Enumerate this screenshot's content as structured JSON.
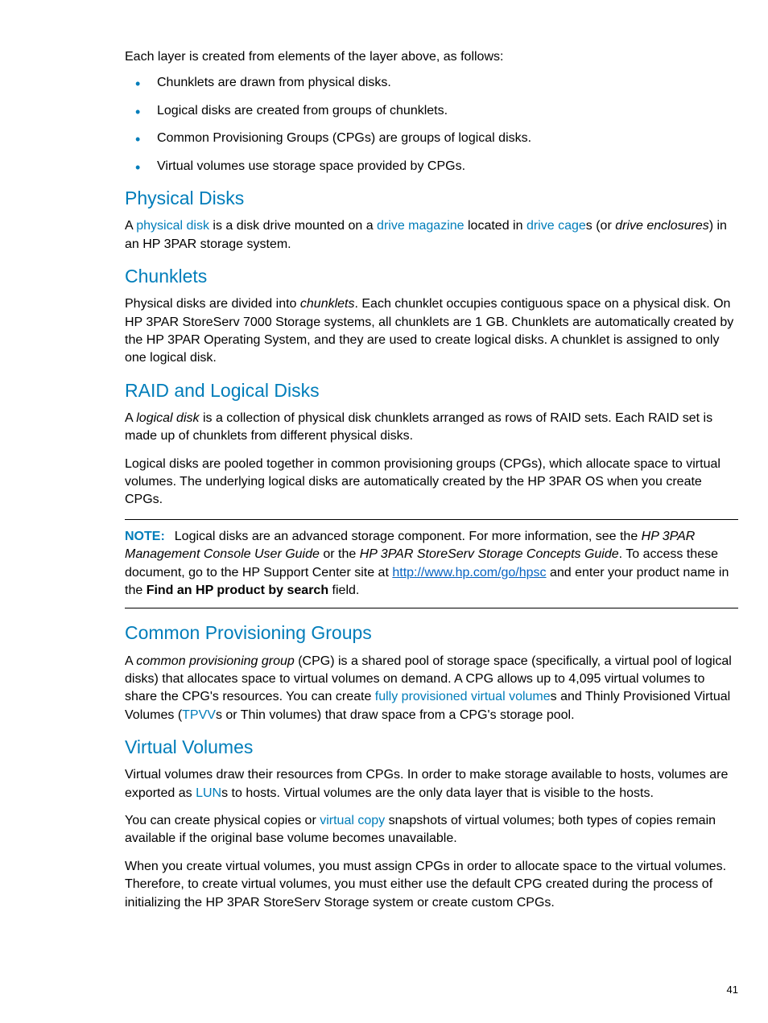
{
  "colors": {
    "accent": "#007dba",
    "link_url": "#0563c1",
    "text": "#000000",
    "background": "#ffffff"
  },
  "typography": {
    "body_fontsize": 16,
    "heading_fontsize": 23,
    "page_number_fontsize": 13,
    "heading_weight": "normal",
    "font_family": "Segoe UI, sans-serif"
  },
  "intro": "Each layer is created from elements of the layer above, as follows:",
  "bullets": [
    "Chunklets are drawn from physical disks.",
    "Logical disks are created from groups of chunklets.",
    "Common Provisioning Groups (CPGs) are groups of logical disks.",
    "Virtual volumes use storage space provided by CPGs."
  ],
  "sections": {
    "physical_disks": {
      "heading": "Physical Disks",
      "para1_pre": "A ",
      "para1_link1": "physical disk",
      "para1_mid1": " is a disk drive mounted on a ",
      "para1_link2": "drive magazine",
      "para1_mid2": " located in ",
      "para1_link3": "drive cage",
      "para1_mid3": "s (or ",
      "para1_italic": "drive enclosures",
      "para1_end": ") in an HP 3PAR storage system."
    },
    "chunklets": {
      "heading": "Chunklets",
      "para1_pre": "Physical disks are divided into ",
      "para1_italic": "chunklets",
      "para1_end": ". Each chunklet occupies contiguous space on a physical disk. On HP 3PAR StoreServ 7000 Storage systems, all chunklets are 1 GB. Chunklets are automatically created by the HP 3PAR Operating System, and they are used to create logical disks. A chunklet is assigned to only one logical disk."
    },
    "raid": {
      "heading": "RAID and Logical Disks",
      "para1_pre": "A ",
      "para1_italic": "logical disk",
      "para1_end": " is a collection of physical disk chunklets arranged as rows of RAID sets. Each RAID set is made up of chunklets from different physical disks.",
      "para2": "Logical disks are pooled together in common provisioning groups (CPGs), which allocate space to virtual volumes. The underlying logical disks are automatically created by the HP 3PAR OS when you create CPGs.",
      "note_label": "NOTE:",
      "note_pre": "Logical disks are an advanced storage component. For more information, see the ",
      "note_italic1": "HP 3PAR Management Console User Guide",
      "note_mid1": " or the ",
      "note_italic2": "HP 3PAR StoreServ Storage Concepts Guide",
      "note_mid2": ". To access these document, go to the HP Support Center site at ",
      "note_url": "http://www.hp.com/go/hpsc",
      "note_mid3": " and enter your product name in the ",
      "note_bold": "Find an HP product by search",
      "note_end": " field."
    },
    "cpg": {
      "heading": "Common Provisioning Groups",
      "para1_pre": "A ",
      "para1_italic": "common provisioning group",
      "para1_mid1": " (CPG) is a shared pool of storage space (specifically, a virtual pool of logical disks) that allocates space to virtual volumes on demand. A CPG allows up to 4,095 virtual volumes to share the CPG's resources. You can create ",
      "para1_link1": "fully provisioned virtual volume",
      "para1_mid2": "s and Thinly Provisioned Virtual Volumes (",
      "para1_link2": "TPVV",
      "para1_end": "s or Thin volumes) that draw space from a CPG's storage pool."
    },
    "virtual_volumes": {
      "heading": "Virtual Volumes",
      "para1_pre": "Virtual volumes draw their resources from CPGs. In order to make storage available to hosts, volumes are exported as ",
      "para1_link1": "LUN",
      "para1_end": "s to hosts. Virtual volumes are the only data layer that is visible to the hosts.",
      "para2_pre": "You can create physical copies or ",
      "para2_link1": "virtual copy",
      "para2_end": " snapshots of virtual volumes; both types of copies remain available if the original base volume becomes unavailable.",
      "para3": "When you create virtual volumes, you must assign CPGs in order to allocate space to the virtual volumes. Therefore, to create virtual volumes, you must either use the default CPG created during the process of initializing the HP 3PAR StoreServ Storage system or create custom CPGs."
    }
  },
  "page_number": "41"
}
